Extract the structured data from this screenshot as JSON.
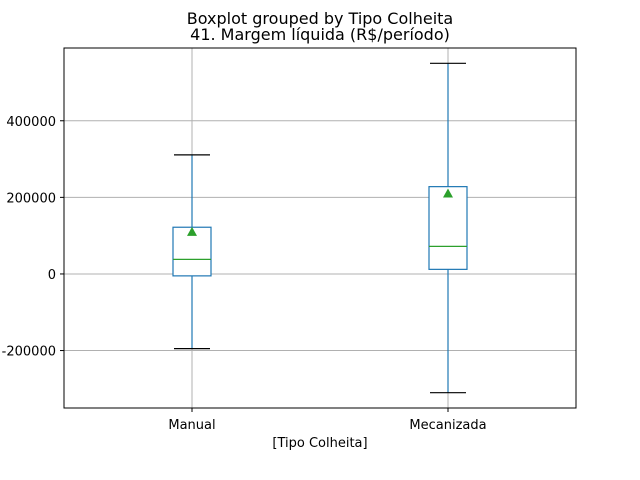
{
  "chart_data": {
    "type": "boxplot",
    "title": "Boxplot grouped by Tipo Colheita",
    "subtitle": "41. Margem líquida (R$/período)",
    "xlabel": "[Tipo Colheita]",
    "ylabel": "",
    "ylim": [
      -350000,
      590000
    ],
    "yticks": [
      -200000,
      0,
      200000,
      400000
    ],
    "ytick_labels": [
      "-200000",
      "0",
      "200000",
      "400000"
    ],
    "grid": true,
    "categories": [
      "Manual",
      "Mecanizada"
    ],
    "boxes": [
      {
        "category": "Manual",
        "whisker_low": -195000,
        "q1": -5000,
        "median": 38000,
        "q3": 122000,
        "whisker_high": 311000,
        "mean": 110000
      },
      {
        "category": "Mecanizada",
        "whisker_low": -310000,
        "q1": 12000,
        "median": 72000,
        "q3": 228000,
        "whisker_high": 550000,
        "mean": 210000
      }
    ],
    "colors": {
      "box": "#1f77b4",
      "median": "#2ca02c",
      "mean_marker": "#2ca02c",
      "caps": "#000000",
      "grid": "#b0b0b0"
    }
  }
}
